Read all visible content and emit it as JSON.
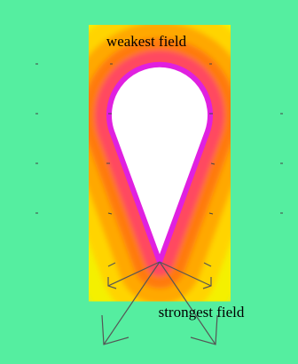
{
  "labels": {
    "top": "weakest field",
    "bottom": "strongest field"
  }
}
